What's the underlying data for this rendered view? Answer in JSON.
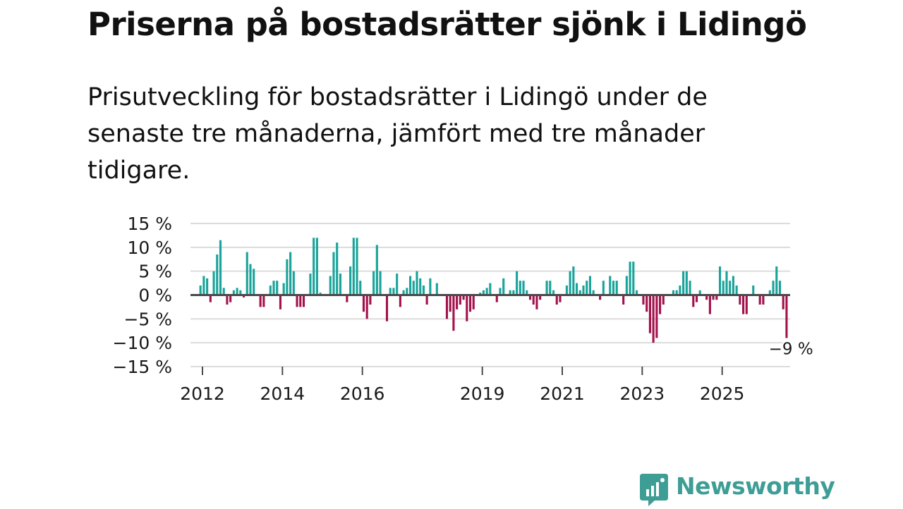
{
  "title": "Priserna på bostadsrätter sjönk i Lidingö",
  "subtitle": "Prisutveckling för bostadsrätter i Lidingö under de senaste tre månaderna, jämfört med tre månader tidigare.",
  "brand": {
    "name": "Newsworthy",
    "color": "#3e9e95",
    "icon": "newsworthy-logo-icon"
  },
  "colors": {
    "positive": "#1aa39a",
    "negative": "#a3124c",
    "grid": "#dcdcdc",
    "zero_line": "#4a4a4a",
    "text": "#1a1a1a"
  },
  "chart_data": {
    "type": "bar",
    "title": "Prisutveckling för bostadsrätter i Lidingö",
    "xlabel": "",
    "ylabel": "",
    "unit": "%",
    "x_start": 2011.7,
    "x_end": 2026.7,
    "ylim": [
      -15,
      15
    ],
    "yticks": [
      {
        "value": 15,
        "label": "15 %"
      },
      {
        "value": 10,
        "label": "10 %"
      },
      {
        "value": 5,
        "label": "5 %"
      },
      {
        "value": 0,
        "label": "0 %"
      },
      {
        "value": -5,
        "label": "−5 %"
      },
      {
        "value": -10,
        "label": "−10 %"
      },
      {
        "value": -15,
        "label": "−15 %"
      }
    ],
    "xticks": [
      {
        "value": 2012,
        "label": "2012"
      },
      {
        "value": 2014,
        "label": "2014"
      },
      {
        "value": 2016,
        "label": "2016"
      },
      {
        "value": 2019,
        "label": "2019"
      },
      {
        "value": 2021,
        "label": "2021"
      },
      {
        "value": 2023,
        "label": "2023"
      },
      {
        "value": 2025,
        "label": "2025"
      }
    ],
    "grid": true,
    "series": [
      {
        "name": "Prisutveckling",
        "start": 2011.95,
        "step": 0.0833,
        "values": [
          2,
          4,
          3.5,
          -1.5,
          5,
          8.5,
          11.5,
          1.5,
          -2,
          -1.5,
          1,
          1.5,
          1,
          -0.5,
          9,
          6.5,
          5.5,
          0,
          -2.5,
          -2.5,
          0,
          2,
          3,
          3,
          -3,
          2.5,
          7.5,
          9,
          5,
          -2.5,
          -2.5,
          -2.5,
          0,
          4.5,
          12,
          12,
          0.5,
          0,
          0,
          4,
          9,
          11,
          4.5,
          0,
          -1.5,
          6,
          12,
          12,
          3,
          -3.5,
          -5,
          -2,
          5,
          10.5,
          5,
          0,
          -5.5,
          1.5,
          1.5,
          4.5,
          -2.5,
          1,
          1.5,
          4,
          3,
          5,
          3.5,
          2,
          -2,
          3.5,
          0,
          2.5,
          0,
          0,
          -5,
          -3.5,
          -7.5,
          -3,
          -2,
          -1,
          -5.5,
          -3.5,
          -3,
          0,
          0.5,
          1,
          1.5,
          2.5,
          0,
          -1.5,
          1.5,
          3.5,
          0,
          1,
          1,
          5,
          3,
          3,
          1,
          -1,
          -2,
          -3,
          -1,
          0,
          3,
          3,
          1,
          -2,
          -1.5,
          0,
          2,
          5,
          6,
          2.5,
          1,
          2,
          3,
          4,
          1,
          0,
          -1,
          3,
          0,
          4,
          3,
          3,
          0,
          -2,
          4,
          7,
          7,
          1,
          0,
          -2,
          -3.5,
          -8,
          -10,
          -9,
          -4,
          -2,
          0,
          0,
          1,
          1,
          2,
          5,
          5,
          3,
          -2.5,
          -1.5,
          1,
          0,
          -1,
          -4,
          -1,
          -1,
          6,
          3,
          5,
          3,
          4,
          2,
          -2,
          -4,
          -4,
          0,
          2,
          0,
          -2,
          -2,
          0,
          1,
          3,
          6,
          3,
          -3,
          -9
        ]
      }
    ],
    "annotations": [
      {
        "x_index": 177,
        "value": -9,
        "label": "−9 %"
      }
    ]
  }
}
